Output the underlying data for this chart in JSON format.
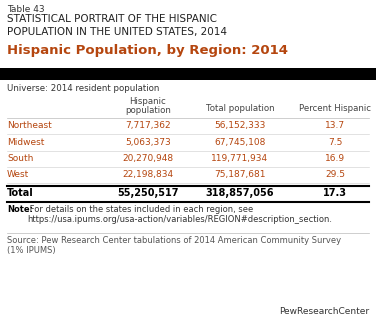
{
  "table_number": "Table 43",
  "subtitle": "STATISTICAL PORTRAIT OF THE HISPANIC\nPOPULATION IN THE UNITED STATES, 2014",
  "title_orange": "Hispanic Population, by Region: 2014",
  "universe": "Universe: 2014 resident population",
  "col_headers_line1": [
    "Hispanic",
    "Total population",
    "Percent Hispanic"
  ],
  "col_headers_line2": [
    "population",
    "",
    ""
  ],
  "row_labels": [
    "Northeast",
    "Midwest",
    "South",
    "West"
  ],
  "row_data": [
    [
      "7,717,362",
      "56,152,333",
      "13.7"
    ],
    [
      "5,063,373",
      "67,745,108",
      "7.5"
    ],
    [
      "20,270,948",
      "119,771,934",
      "16.9"
    ],
    [
      "22,198,834",
      "75,187,681",
      "29.5"
    ]
  ],
  "total_label": "Total",
  "total_data": [
    "55,250,517",
    "318,857,056",
    "17.3"
  ],
  "note_bold": "Note:",
  "note_text": " For details on the states included in each region, see\nhttps://usa.ipums.org/usa-action/variables/REGION#description_section.",
  "source_text": "Source: Pew Research Center tabulations of 2014 American Community Survey\n(1% IPUMS)",
  "logo_text": "PewResearchCenter",
  "color_orange": "#b5460f",
  "color_black": "#000000",
  "color_dark": "#222222",
  "color_row_label": "#b5460f",
  "color_data": "#b5460f",
  "bg_color": "#ffffff",
  "divider_color": "#bbbbbb"
}
